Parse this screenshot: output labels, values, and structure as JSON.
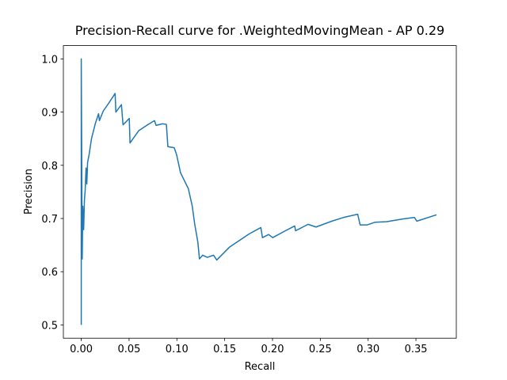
{
  "chart_data": {
    "type": "line",
    "title": "Precision-Recall curve for .WeightedMovingMean - AP 0.29",
    "x_label": "Recall",
    "y_label": "Precision",
    "xlim": [
      -0.0187,
      0.3922
    ],
    "ylim": [
      0.475,
      1.025
    ],
    "xticks": [
      {
        "value": 0,
        "label": "0.00"
      },
      0.05,
      {
        "value": 0.1,
        "label": "0.10"
      },
      0.15,
      {
        "value": 0.2,
        "label": "0.20"
      },
      0.25,
      {
        "value": 0.3,
        "label": "0.30"
      },
      0.35
    ],
    "yticks": [
      0.5,
      0.6,
      0.7,
      0.8,
      0.9,
      {
        "value": 1,
        "label": "1.0"
      }
    ],
    "series": [
      {
        "color": "#1f77b4",
        "x": [
          0,
          0,
          0.001,
          0.0016,
          0.0025,
          0.0033,
          0.0041,
          0.005,
          0.0058,
          0.0066,
          0.0082,
          0.0107,
          0.0148,
          0.0181,
          0.019,
          0.023,
          0.0288,
          0.0354,
          0.0362,
          0.042,
          0.0437,
          0.0502,
          0.051,
          0.0601,
          0.0692,
          0.0766,
          0.0783,
          0.0848,
          0.089,
          0.0906,
          0.0972,
          0.0997,
          0.1038,
          0.112,
          0.1161,
          0.1186,
          0.1219,
          0.1236,
          0.1269,
          0.1318,
          0.1384,
          0.1417,
          0.1549,
          0.1755,
          0.1878,
          0.1895,
          0.196,
          0.2002,
          0.2125,
          0.2232,
          0.2241,
          0.2372,
          0.2455,
          0.262,
          0.2743,
          0.2891,
          0.2916,
          0.299,
          0.3072,
          0.3196,
          0.3361,
          0.3484,
          0.3509,
          0.3715
        ],
        "values": [
          0.5,
          1.0,
          0.624,
          0.723,
          0.679,
          0.734,
          0.753,
          0.795,
          0.765,
          0.805,
          0.82,
          0.85,
          0.879,
          0.897,
          0.884,
          0.902,
          0.917,
          0.935,
          0.9,
          0.914,
          0.876,
          0.888,
          0.842,
          0.865,
          0.876,
          0.884,
          0.875,
          0.878,
          0.877,
          0.835,
          0.833,
          0.82,
          0.786,
          0.756,
          0.723,
          0.69,
          0.656,
          0.624,
          0.631,
          0.627,
          0.631,
          0.622,
          0.646,
          0.671,
          0.683,
          0.664,
          0.67,
          0.664,
          0.676,
          0.686,
          0.677,
          0.689,
          0.684,
          0.695,
          0.702,
          0.708,
          0.688,
          0.688,
          0.693,
          0.694,
          0.699,
          0.702,
          0.695,
          0.707
        ]
      }
    ]
  }
}
